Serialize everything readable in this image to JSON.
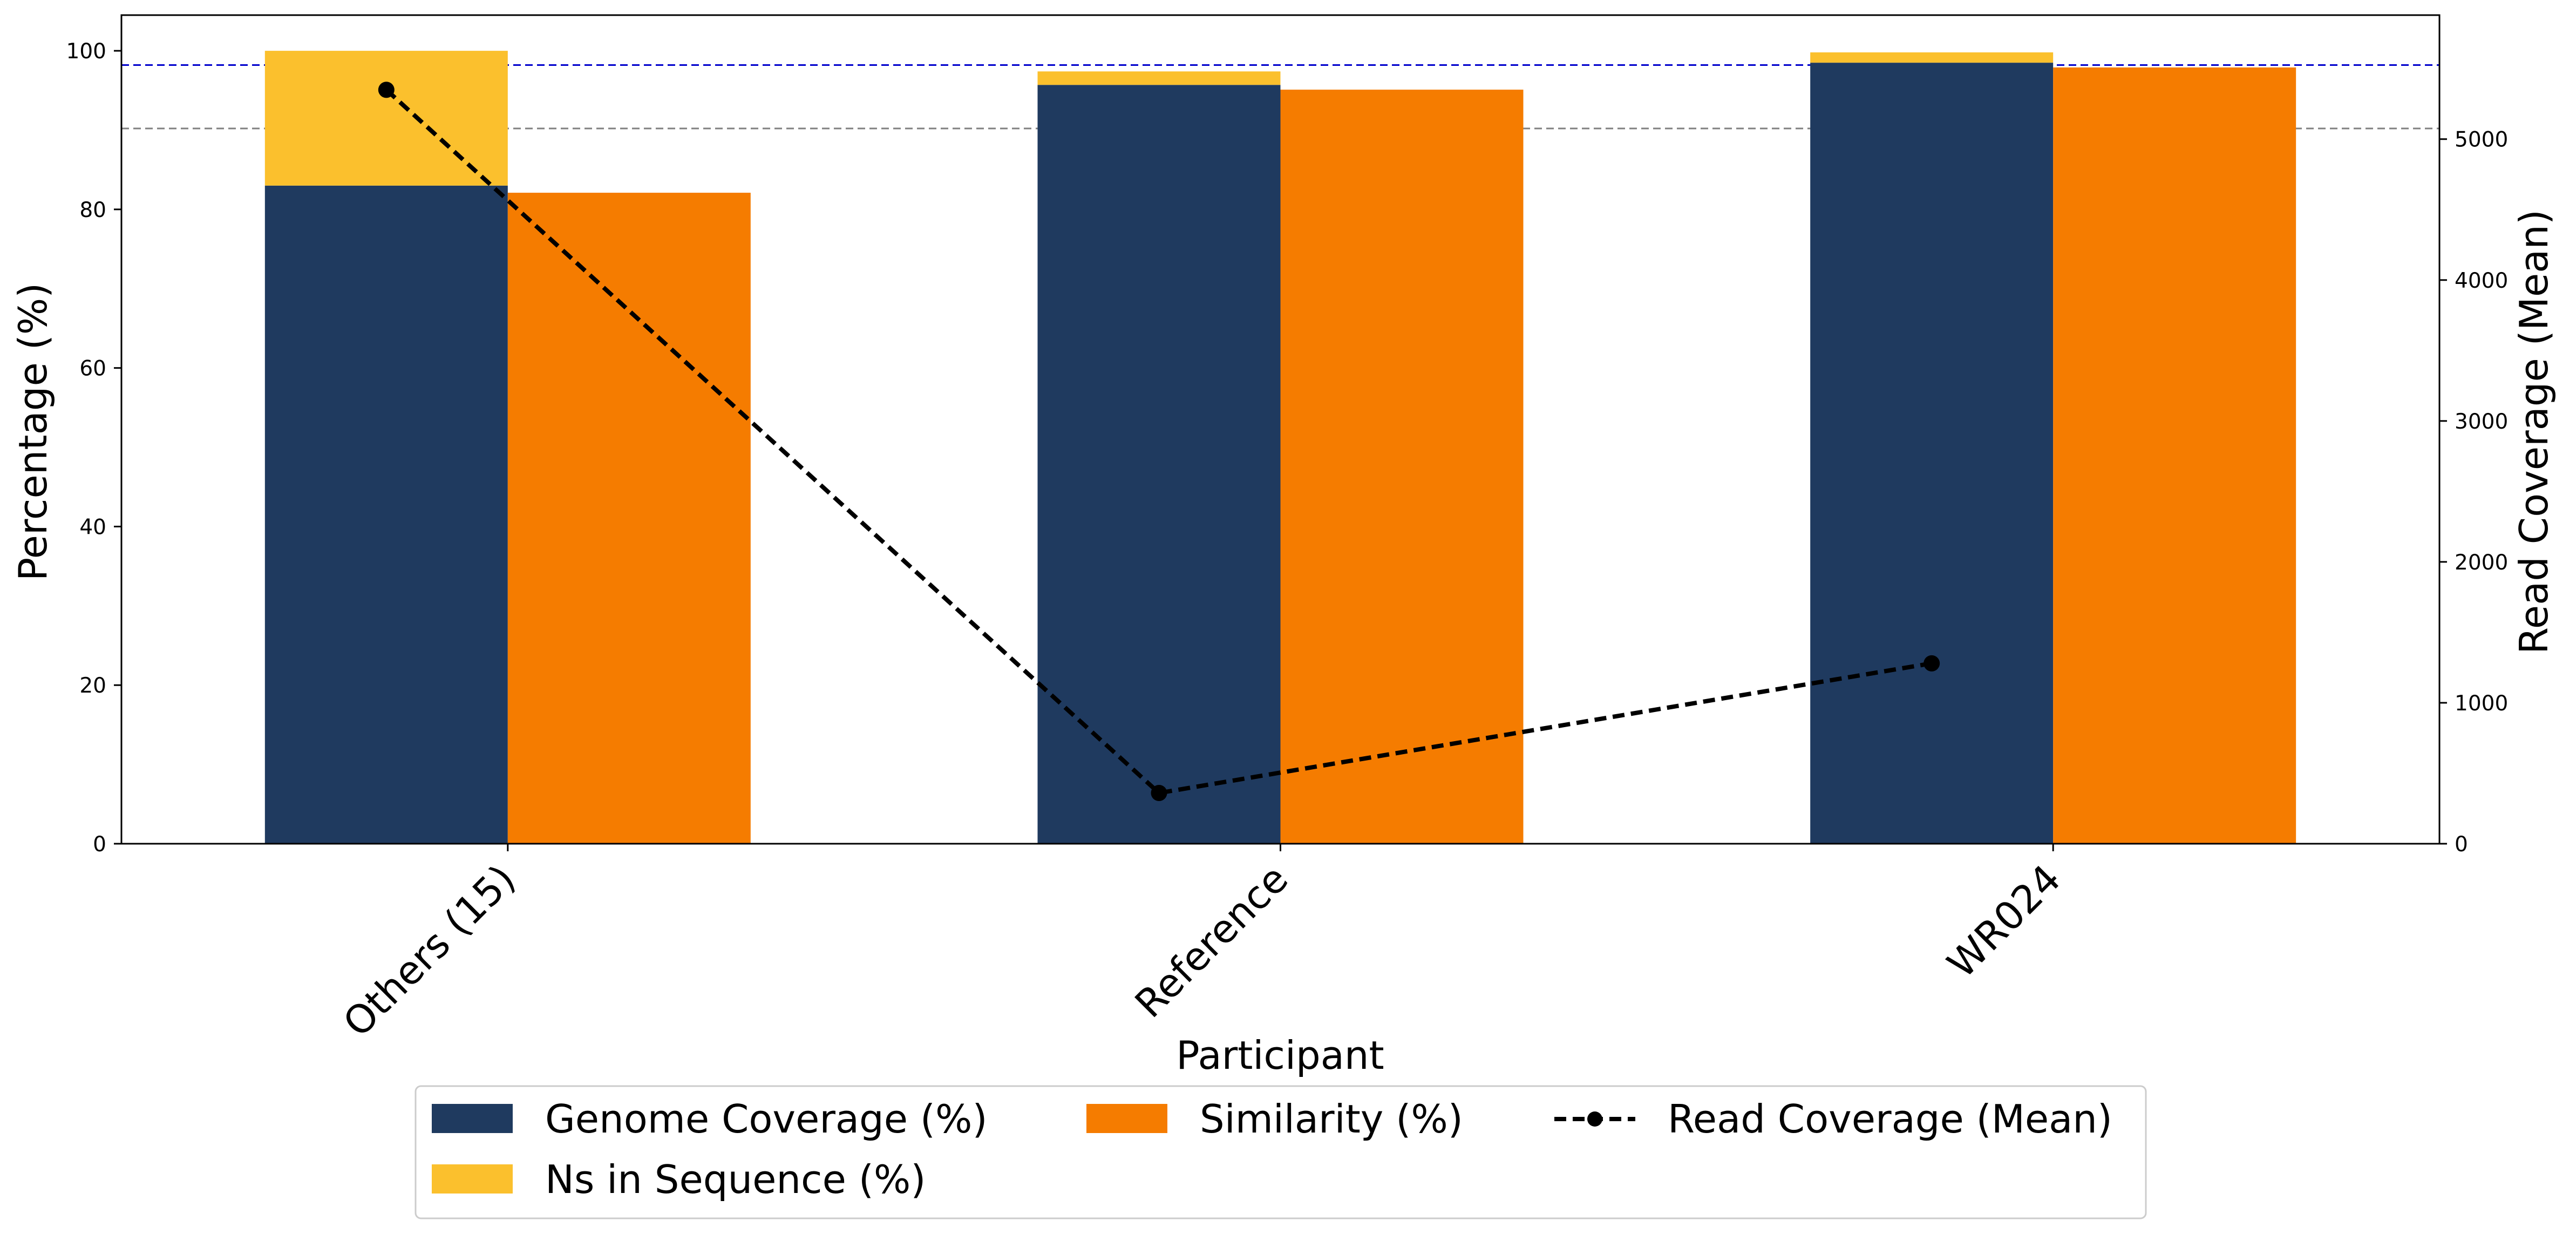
{
  "chart_data": {
    "type": "bar",
    "categories": [
      "Others (15)",
      "Reference",
      "WR024"
    ],
    "xlabel": "Participant",
    "ylabel": "Percentage (%)",
    "ylabel_right": "Read Coverage (Mean)",
    "ylim": [
      0,
      104.5
    ],
    "ylim_right": [
      0,
      5880
    ],
    "yticks": [
      0,
      20,
      40,
      60,
      80,
      100
    ],
    "yticks_right": [
      0,
      1000,
      2000,
      3000,
      4000,
      5000
    ],
    "series": [
      {
        "name": "Genome Coverage (%)",
        "values": [
          83.0,
          95.7,
          98.5
        ],
        "color": "#1f3a5f",
        "group": "stack"
      },
      {
        "name": "Ns in Sequence (%)",
        "values": [
          17.0,
          1.7,
          1.3
        ],
        "color": "#fbc02d",
        "group": "stack"
      },
      {
        "name": "Similarity (%)",
        "values": [
          82.1,
          95.1,
          97.9
        ],
        "color": "#f57c00",
        "group": "single"
      },
      {
        "name": "Read Coverage (Mean)",
        "values": [
          5350,
          360,
          1280
        ],
        "color": "#000000",
        "type": "line",
        "axis": "right"
      }
    ],
    "reference_lines": [
      {
        "axis": "left",
        "value": 98.2,
        "color": "#0000cc",
        "style": "dashed"
      },
      {
        "axis": "left",
        "value": 90.2,
        "color": "#808080",
        "style": "dashed"
      }
    ],
    "legend": {
      "placement": "bottom-center",
      "columns": 3,
      "entries": [
        "Genome Coverage (%)",
        "Similarity (%)",
        "Read Coverage (Mean)",
        "Ns in Sequence (%)"
      ]
    },
    "grid": false
  }
}
